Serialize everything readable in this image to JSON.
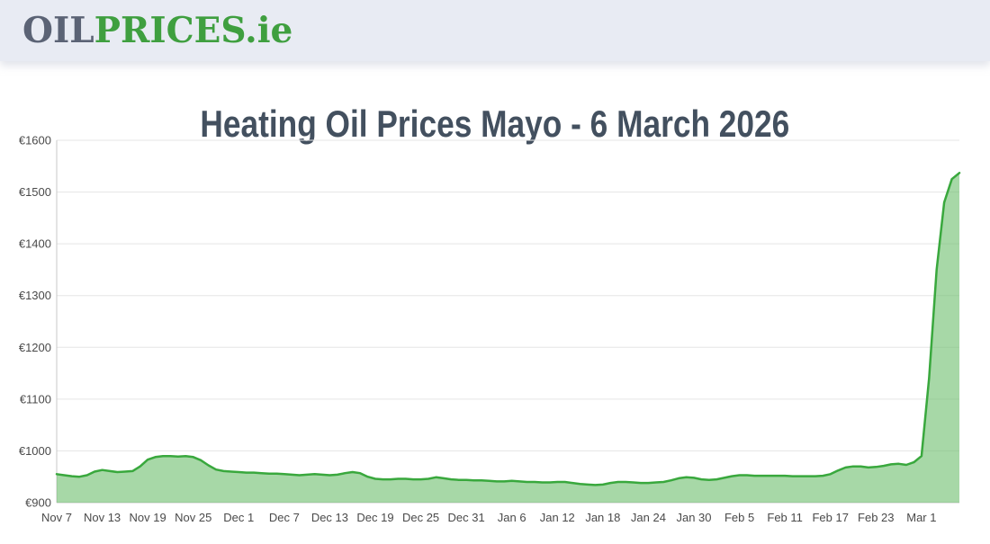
{
  "header": {
    "logo": {
      "oil": "OIL",
      "prices_ie": "PRICES.ie"
    }
  },
  "page": {
    "title": "Heating Oil Prices Mayo - 6 March 2026"
  },
  "colors": {
    "header_bg": "#e8ebf3",
    "logo_oil": "#5b6375",
    "logo_green": "#3f9f3f",
    "title_text": "#43505f",
    "chart_line": "#39a83d",
    "chart_fill": "rgba(108,190,108,0.60)",
    "grid_line": "#e5e5e5",
    "axis_line": "#c9c9c9",
    "tick_text": "#4a4a4a"
  },
  "chart_data": {
    "type": "area",
    "title": "Heating Oil Prices Mayo - 6 March 2026",
    "currency_prefix": "€",
    "ylim": [
      900,
      1600
    ],
    "y_ticks": [
      900,
      1000,
      1100,
      1200,
      1300,
      1400,
      1500,
      1600
    ],
    "x_start_date": "2025-11-07",
    "x_end_date": "2026-03-06",
    "x_tick_interval_days": 6,
    "x_tick_labels": [
      "Nov 7",
      "Nov 13",
      "Nov 19",
      "Nov 25",
      "Dec 1",
      "Dec 7",
      "Dec 13",
      "Dec 19",
      "Dec 25",
      "Dec 31",
      "Jan 6",
      "Jan 12",
      "Jan 18",
      "Jan 24",
      "Jan 30",
      "Feb 5",
      "Feb 11",
      "Feb 17",
      "Feb 23",
      "Mar 1"
    ],
    "grid": "horizontal",
    "legend": "none",
    "series": [
      {
        "values": [
          955,
          953,
          951,
          950,
          953,
          960,
          963,
          961,
          959,
          960,
          961,
          970,
          983,
          988,
          990,
          990,
          989,
          990,
          988,
          982,
          972,
          964,
          961,
          960,
          959,
          958,
          958,
          957,
          956,
          956,
          955,
          954,
          953,
          954,
          955,
          954,
          953,
          954,
          957,
          959,
          957,
          950,
          946,
          945,
          945,
          946,
          946,
          945,
          945,
          946,
          949,
          947,
          945,
          944,
          944,
          943,
          943,
          942,
          941,
          941,
          942,
          941,
          940,
          940,
          939,
          939,
          940,
          940,
          938,
          936,
          935,
          934,
          935,
          938,
          940,
          940,
          939,
          938,
          938,
          939,
          940,
          943,
          947,
          949,
          948,
          945,
          944,
          945,
          948,
          951,
          953,
          953,
          952,
          952,
          952,
          952,
          952,
          951,
          951,
          951,
          951,
          952,
          955,
          962,
          968,
          970,
          970,
          968,
          969,
          971,
          974,
          975,
          973,
          978,
          990,
          1140,
          1350,
          1480,
          1525,
          1537
        ]
      }
    ]
  }
}
